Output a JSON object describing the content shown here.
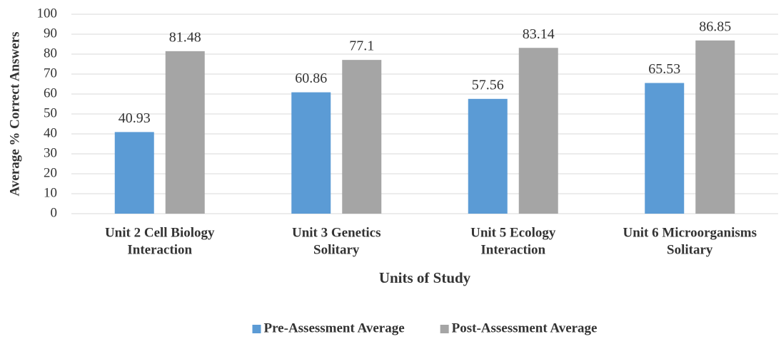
{
  "chart_data": {
    "type": "bar",
    "categories": [
      [
        "Unit 2 Cell Biology",
        "Interaction"
      ],
      [
        "Unit 3 Genetics",
        "Solitary"
      ],
      [
        "Unit 5 Ecology",
        "Interaction"
      ],
      [
        "Unit 6 Microorganisms",
        "Solitary"
      ]
    ],
    "series": [
      {
        "name": "Pre-Assessment Average",
        "color": "#5b9bd5",
        "values": [
          40.93,
          60.86,
          57.56,
          65.53
        ]
      },
      {
        "name": "Post-Assessment Average",
        "color": "#a5a5a5",
        "values": [
          81.48,
          77.1,
          83.14,
          86.85
        ]
      }
    ],
    "xlabel": "Units of Study",
    "ylabel": "Average % Correct Answers",
    "ylim": [
      0,
      100
    ],
    "yticks": [
      0,
      10,
      20,
      30,
      40,
      50,
      60,
      70,
      80,
      90,
      100
    ],
    "grid": true,
    "legend": "bottom"
  }
}
